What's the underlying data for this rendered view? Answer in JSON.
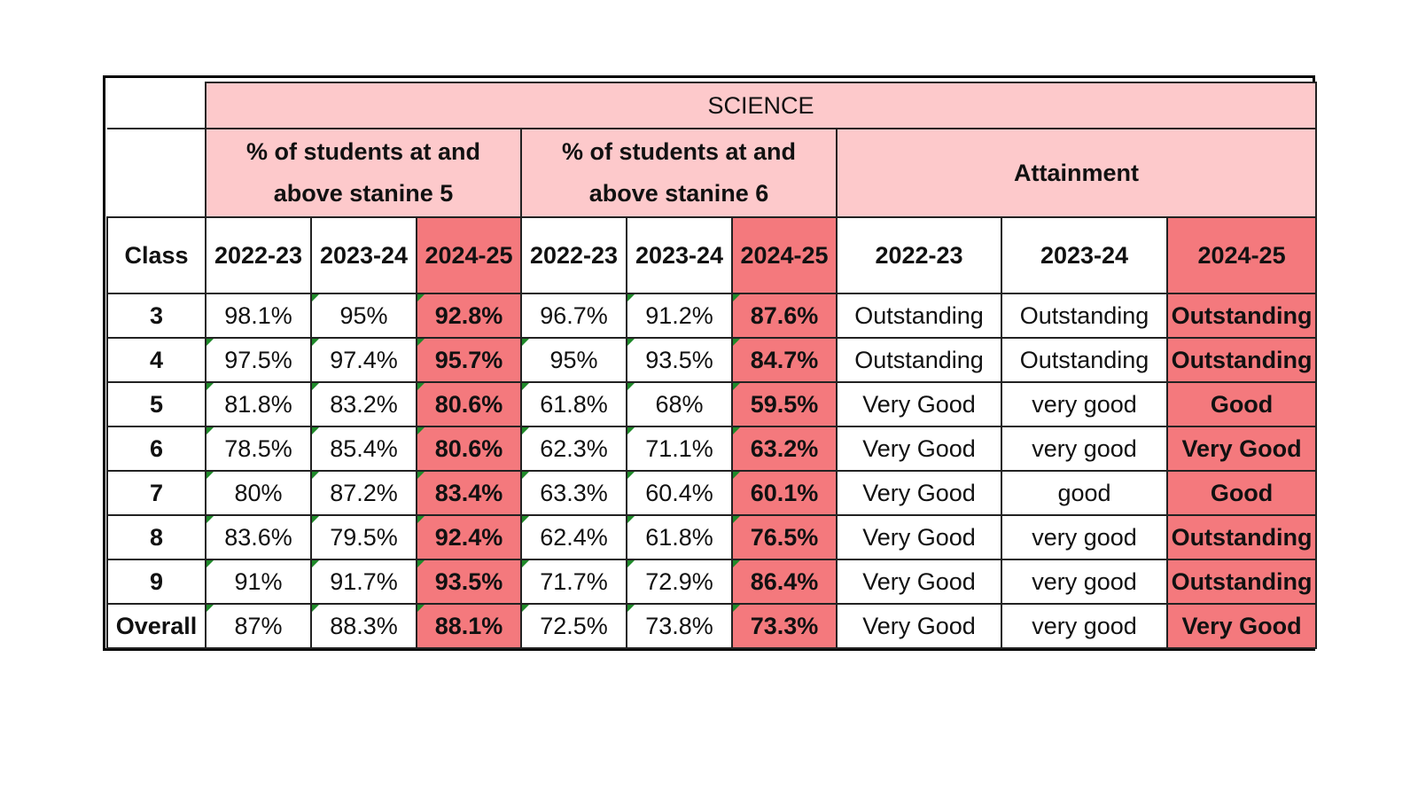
{
  "subject": "SCIENCE",
  "groups": {
    "stanine5": "% of students at and above stanine 5",
    "stanine6": "% of students at and above stanine 6",
    "attainment": "Attainment"
  },
  "column_header": {
    "class": "Class",
    "years": [
      "2022-23",
      "2023-24",
      "2024-25"
    ]
  },
  "rows": [
    {
      "class": "3",
      "s5": [
        "98.1%",
        "95%",
        "92.8%"
      ],
      "s6": [
        "96.7%",
        "91.2%",
        "87.6%"
      ],
      "att": [
        "Outstanding",
        "Outstanding",
        "Outstanding"
      ]
    },
    {
      "class": "4",
      "s5": [
        "97.5%",
        "97.4%",
        "95.7%"
      ],
      "s6": [
        "95%",
        "93.5%",
        "84.7%"
      ],
      "att": [
        "Outstanding",
        "Outstanding",
        "Outstanding"
      ]
    },
    {
      "class": "5",
      "s5": [
        "81.8%",
        "83.2%",
        "80.6%"
      ],
      "s6": [
        "61.8%",
        "68%",
        "59.5%"
      ],
      "att": [
        "Very Good",
        "very good",
        "Good"
      ]
    },
    {
      "class": "6",
      "s5": [
        "78.5%",
        "85.4%",
        "80.6%"
      ],
      "s6": [
        "62.3%",
        "71.1%",
        "63.2%"
      ],
      "att": [
        "Very Good",
        "very good",
        "Very Good"
      ]
    },
    {
      "class": "7",
      "s5": [
        "80%",
        "87.2%",
        "83.4%"
      ],
      "s6": [
        "63.3%",
        "60.4%",
        "60.1%"
      ],
      "att": [
        "Very Good",
        "good",
        "Good"
      ]
    },
    {
      "class": "8",
      "s5": [
        "83.6%",
        "79.5%",
        "92.4%"
      ],
      "s6": [
        "62.4%",
        "61.8%",
        "76.5%"
      ],
      "att": [
        "Very Good",
        "very good",
        "Outstanding"
      ]
    },
    {
      "class": "9",
      "s5": [
        "91%",
        "91.7%",
        "93.5%"
      ],
      "s6": [
        "71.7%",
        "72.9%",
        "86.4%"
      ],
      "att": [
        "Very Good",
        "very good",
        "Outstanding"
      ]
    },
    {
      "class": "Overall",
      "s5": [
        "87%",
        "88.3%",
        "88.1%"
      ],
      "s6": [
        "72.5%",
        "73.8%",
        "73.3%"
      ],
      "att": [
        "Very Good",
        "very good",
        "Very Good"
      ]
    }
  ],
  "colors": {
    "header_fill": "#fdc9cb",
    "highlight_fill": "#f4797d",
    "comment_marker": "#1f8a2a"
  }
}
